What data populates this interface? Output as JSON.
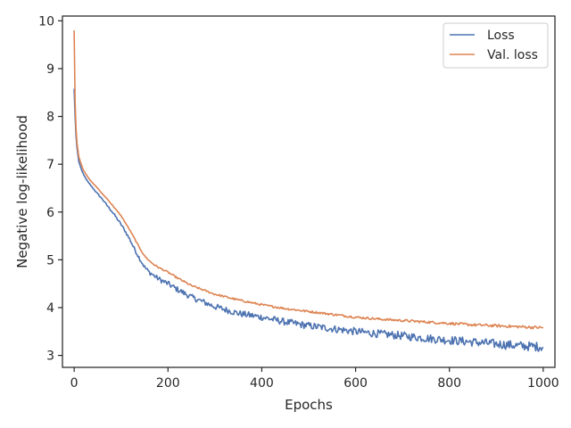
{
  "chart_data": {
    "type": "line",
    "title": "",
    "xlabel": "Epochs",
    "ylabel": "Negative log-likelihood",
    "xlim": [
      -25,
      1025
    ],
    "ylim": [
      2.75,
      10.1
    ],
    "xticks": [
      0,
      200,
      400,
      600,
      800,
      1000
    ],
    "yticks": [
      3,
      4,
      5,
      6,
      7,
      8,
      9,
      10
    ],
    "grid": false,
    "legend_position": "top-right",
    "series": [
      {
        "name": "Loss",
        "color": "#4c72b0",
        "noise": 0.05,
        "x": [
          0,
          2,
          4,
          6,
          8,
          10,
          15,
          20,
          30,
          40,
          50,
          60,
          70,
          80,
          90,
          100,
          110,
          120,
          130,
          140,
          150,
          160,
          170,
          180,
          200,
          220,
          250,
          300,
          350,
          400,
          450,
          500,
          550,
          600,
          650,
          700,
          750,
          800,
          850,
          900,
          950,
          1000
        ],
        "y": [
          8.58,
          8.0,
          7.6,
          7.35,
          7.2,
          7.05,
          6.9,
          6.78,
          6.62,
          6.5,
          6.38,
          6.27,
          6.14,
          6.02,
          5.88,
          5.74,
          5.58,
          5.4,
          5.2,
          5.02,
          4.85,
          4.74,
          4.67,
          4.6,
          4.5,
          4.38,
          4.22,
          4.02,
          3.88,
          3.8,
          3.7,
          3.62,
          3.56,
          3.5,
          3.45,
          3.41,
          3.36,
          3.32,
          3.28,
          3.24,
          3.2,
          3.18
        ]
      },
      {
        "name": "Val. loss",
        "color": "#dd8452",
        "noise": 0.015,
        "x": [
          0,
          2,
          4,
          6,
          8,
          10,
          15,
          20,
          30,
          40,
          50,
          60,
          70,
          80,
          90,
          100,
          110,
          120,
          130,
          140,
          150,
          160,
          170,
          180,
          200,
          220,
          250,
          300,
          350,
          400,
          450,
          500,
          550,
          600,
          650,
          700,
          750,
          800,
          850,
          900,
          950,
          1000
        ],
        "y": [
          9.8,
          8.3,
          7.75,
          7.45,
          7.3,
          7.15,
          7.0,
          6.87,
          6.72,
          6.6,
          6.5,
          6.38,
          6.28,
          6.16,
          6.04,
          5.92,
          5.76,
          5.6,
          5.42,
          5.24,
          5.08,
          4.98,
          4.9,
          4.84,
          4.74,
          4.62,
          4.46,
          4.28,
          4.16,
          4.06,
          3.98,
          3.92,
          3.86,
          3.8,
          3.76,
          3.73,
          3.7,
          3.67,
          3.64,
          3.62,
          3.6,
          3.58
        ]
      }
    ]
  }
}
